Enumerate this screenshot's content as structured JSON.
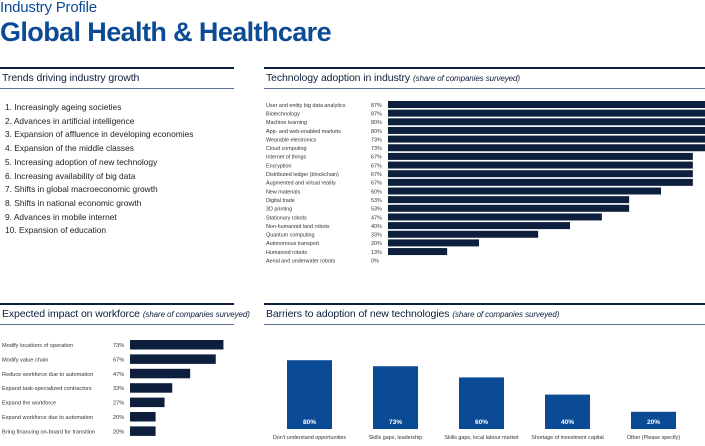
{
  "header": {
    "label": "Industry Profile",
    "title": "Global Health & Healthcare"
  },
  "trends": {
    "title": "Trends driving industry growth",
    "items": [
      "1. Increasingly ageing societies",
      "2. Advances in artificial intelligence",
      "3. Expansion of affluence in developing economies",
      "4. Expansion of the middle classes",
      "5. Increasing adoption of new technology",
      "6. Increasing availability of big data",
      "7. Shifts in global macroeconomic growth",
      "8. Shifts in national economic growth",
      "9. Advances in mobile internet",
      "10. Expansion of education"
    ]
  },
  "tech": {
    "title": "Technology adoption in industry",
    "note": "(share of companies surveyed)"
  },
  "workforce": {
    "title": "Expected impact on workforce",
    "note": "(share of companies surveyed)"
  },
  "barriers": {
    "title": "Barriers to adoption of new technologies",
    "note": "(share of companies surveyed)"
  },
  "colors": {
    "title_blue": "#0b4a94",
    "dark_navy": "#0d1f3c",
    "barrier_blue": "#0b4a94"
  },
  "chart_data": [
    {
      "id": "tech",
      "type": "bar",
      "orientation": "horizontal",
      "title": "Technology adoption in industry (share of companies surveyed)",
      "categories": [
        "User and entity big data analytics",
        "Biotechnology",
        "Machine learning",
        "App- and web-enabled markets",
        "Wearable electronics",
        "Cloud computing",
        "Internet of things",
        "Encryption",
        "Distributed ledger (blockchain)",
        "Augmented and virtual reality",
        "New materials",
        "Digital trade",
        "3D printing",
        "Stationary robots",
        "Non-humanoid land robots",
        "Quantum computing",
        "Autonomous transport",
        "Humanoid robots",
        "Aerial and underwater robots"
      ],
      "values": [
        87,
        87,
        80,
        80,
        73,
        73,
        67,
        67,
        67,
        67,
        60,
        53,
        53,
        47,
        40,
        33,
        20,
        13,
        0
      ],
      "labels": [
        "87%",
        "87%",
        "80%",
        "80%",
        "73%",
        "73%",
        "67%",
        "67%",
        "67%",
        "67%",
        "60%",
        "53%",
        "53%",
        "47%",
        "40%",
        "33%",
        "20%",
        "13%",
        "0%"
      ],
      "xlim": [
        0,
        100
      ]
    },
    {
      "id": "workforce",
      "type": "bar",
      "orientation": "horizontal",
      "title": "Expected impact on workforce (share of companies surveyed)",
      "categories": [
        "Modify locations of operation",
        "Modify value chain",
        "Reduce workforce due to automation",
        "Expand task-specialized contractors",
        "Expand the workforce",
        "Expand workforce due to automation",
        "Bring financing on-board for transition"
      ],
      "values": [
        73,
        67,
        47,
        33,
        27,
        20,
        20
      ],
      "labels": [
        "73%",
        "67%",
        "47%",
        "33%",
        "27%",
        "20%",
        "20%"
      ],
      "xlim": [
        0,
        100
      ]
    },
    {
      "id": "barriers",
      "type": "bar",
      "orientation": "vertical",
      "title": "Barriers to adoption of new technologies (share of companies surveyed)",
      "categories": [
        "Don't understand opportunities",
        "Skills gaps, leadership",
        "Skills gaps, local labour market",
        "Shortage of investment capital",
        "Other (Please specify)"
      ],
      "values": [
        80,
        73,
        60,
        40,
        20
      ],
      "labels": [
        "80%",
        "73%",
        "60%",
        "40%",
        "20%"
      ],
      "ylim": [
        0,
        100
      ]
    }
  ]
}
